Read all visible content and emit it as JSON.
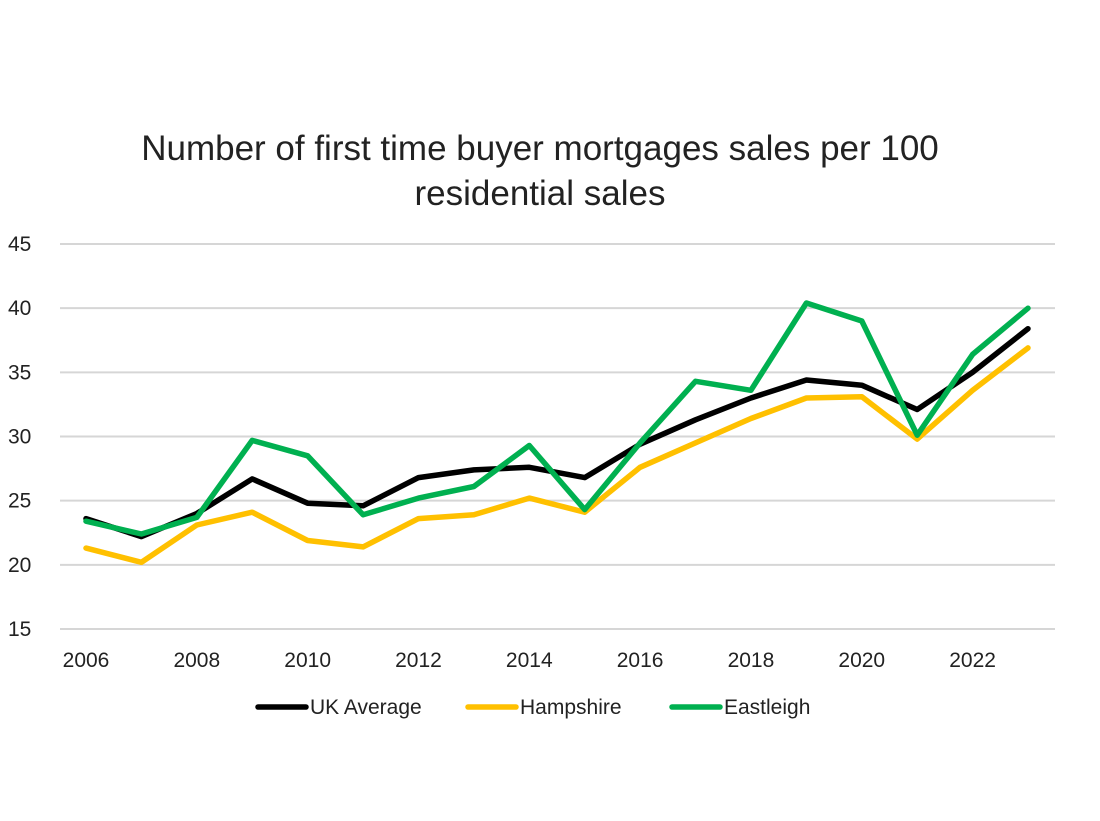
{
  "chart_data": {
    "type": "line",
    "title_lines": [
      "Number of first time buyer mortgages sales per 100",
      "residential sales"
    ],
    "xlabel": "",
    "ylabel": "",
    "x": [
      2006,
      2007,
      2008,
      2009,
      2010,
      2011,
      2012,
      2013,
      2014,
      2015,
      2016,
      2017,
      2018,
      2019,
      2020,
      2021,
      2022,
      2023
    ],
    "x_tick_labels": [
      "2006",
      "2008",
      "2010",
      "2012",
      "2014",
      "2016",
      "2018",
      "2020",
      "2022"
    ],
    "y_ticks": [
      15,
      20,
      25,
      30,
      35,
      40,
      45
    ],
    "ylim": [
      15,
      45
    ],
    "xlim": [
      2006,
      2023
    ],
    "grid": true,
    "legend_position": "bottom",
    "series": [
      {
        "name": "UK Average",
        "color": "#000000",
        "values": [
          23.6,
          22.2,
          24.0,
          26.7,
          24.8,
          24.6,
          26.8,
          27.4,
          27.6,
          26.8,
          29.4,
          31.3,
          33.0,
          34.4,
          34.0,
          32.1,
          35.0,
          38.4
        ]
      },
      {
        "name": "Hampshire",
        "color": "#FFC000",
        "values": [
          21.3,
          20.2,
          23.1,
          24.1,
          21.9,
          21.4,
          23.6,
          23.9,
          25.2,
          24.1,
          27.6,
          29.5,
          31.4,
          33.0,
          33.1,
          29.8,
          33.6,
          36.9
        ]
      },
      {
        "name": "Eastleigh",
        "color": "#00B050",
        "values": [
          23.4,
          22.4,
          23.7,
          29.7,
          28.5,
          23.9,
          25.2,
          26.1,
          29.3,
          24.3,
          29.5,
          34.3,
          33.6,
          40.4,
          39.0,
          30.1,
          36.4,
          40.0
        ]
      }
    ]
  }
}
